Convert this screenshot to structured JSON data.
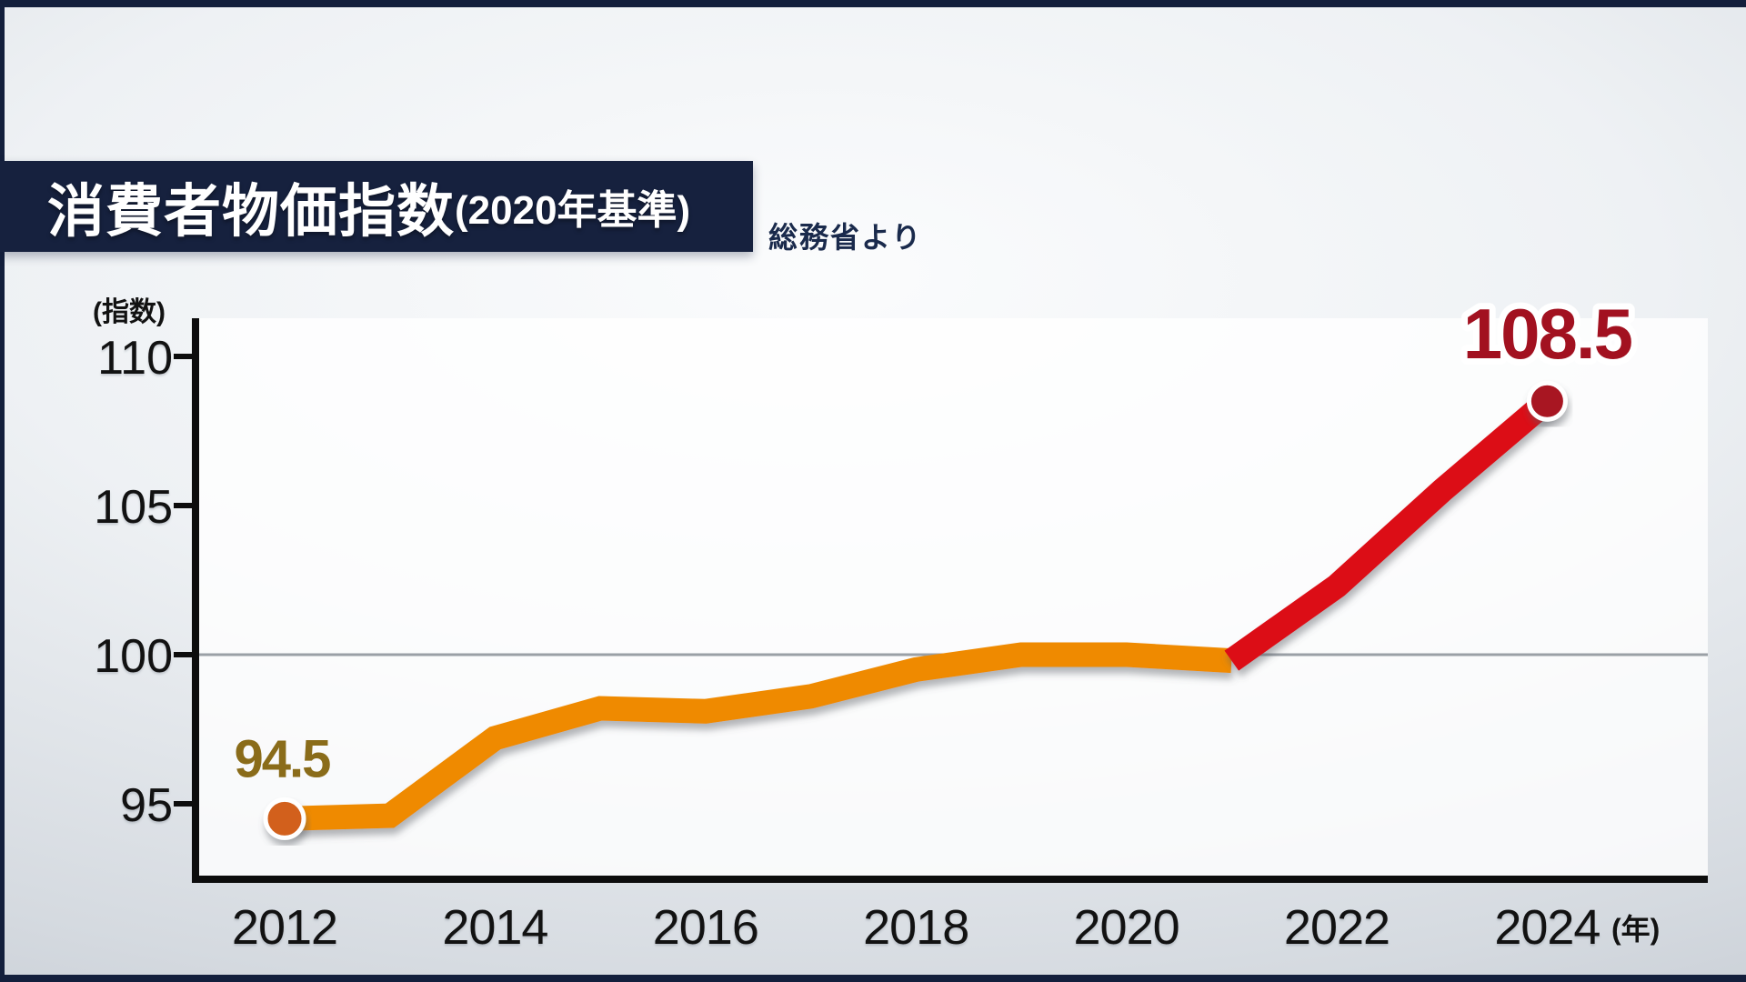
{
  "header": {
    "title_main": "消費者物価指数",
    "title_suffix": "(2020年基準)",
    "source": "総務省より"
  },
  "chart_data": {
    "type": "line",
    "title": "消費者物価指数(2020年基準)",
    "source": "総務省より",
    "y_unit": "(指数)",
    "x_unit": "(年)",
    "y_ticks": [
      110,
      105,
      100,
      95
    ],
    "x_ticks": [
      2012,
      2014,
      2016,
      2018,
      2020,
      2022,
      2024
    ],
    "ylim": [
      92.8,
      111.3
    ],
    "xlim": [
      2012,
      2024
    ],
    "baseline_value": 100,
    "grid": "single horizontal gray line at y=100",
    "legend": "none",
    "series": [
      {
        "name": "CPI 2012-2021 (orange segment)",
        "color": "#ef8a00",
        "years": [
          2012,
          2013,
          2014,
          2015,
          2016,
          2017,
          2018,
          2019,
          2020,
          2021
        ],
        "values": [
          94.5,
          94.6,
          97.2,
          98.2,
          98.1,
          98.6,
          99.5,
          100.0,
          100.0,
          99.8
        ]
      },
      {
        "name": "CPI 2021-2024 (red acceleration segment)",
        "color": "#dc0a14",
        "years": [
          2021,
          2022,
          2023,
          2024
        ],
        "values": [
          99.8,
          102.3,
          105.5,
          108.5
        ]
      }
    ],
    "markers": [
      {
        "year": 2012,
        "value": 94.5,
        "color": "#d2611a",
        "radius": 21
      },
      {
        "year": 2024,
        "value": 108.5,
        "color": "#a81222",
        "radius": 20
      }
    ],
    "annotations": [
      {
        "text": "94.5",
        "year": 2012,
        "value": 94.5,
        "color": "#8a6c1a",
        "outlined": false
      },
      {
        "text": "108.5",
        "year": 2024,
        "value": 108.5,
        "color": "#a21120",
        "outlined": true
      }
    ]
  },
  "colors": {
    "panel_navy": "#16213e",
    "gridline_gray": "#9aa0a6",
    "axis_black": "#0d0d0d",
    "background_light": "#eef1f4",
    "background_edge": "#c3c9d1"
  }
}
